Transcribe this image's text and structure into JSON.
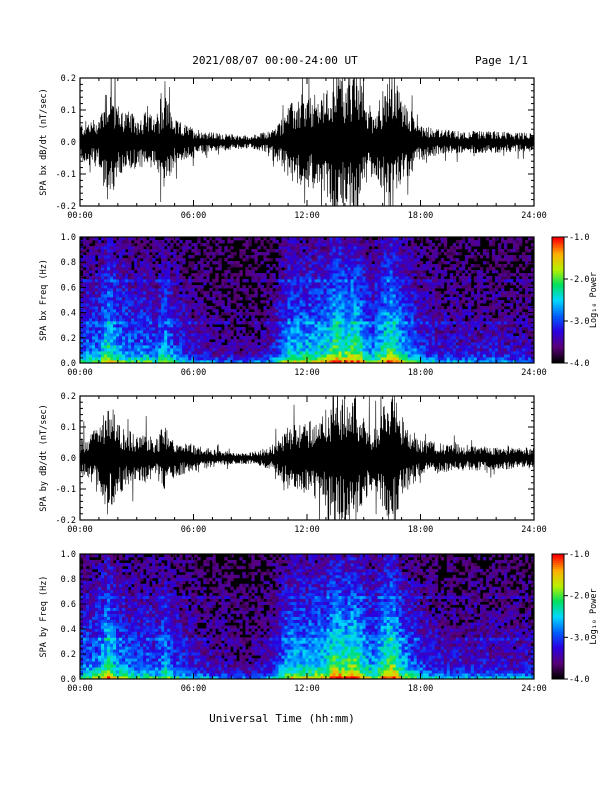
{
  "header": {
    "date_range": "2021/08/07  00:00-24:00 UT",
    "page": "Page 1/1"
  },
  "footer": {
    "xlabel": "Universal Time (hh:mm)"
  },
  "chart_data": [
    {
      "type": "line",
      "panel": "bx-timeseries",
      "ylabel": "SPA bx dB/dt (nT/sec)",
      "ylim": [
        -0.2,
        0.2
      ],
      "yticks": [
        -0.2,
        -0.1,
        0.0,
        0.1,
        0.2
      ],
      "ytick_labels": [
        "-0.2",
        "-0.1",
        "0.0",
        "0.1",
        "0.2"
      ],
      "xlim": [
        0,
        24
      ],
      "xticks": [
        0,
        6,
        12,
        18,
        24
      ],
      "xtick_labels": [
        "00:00",
        "06:00",
        "12:00",
        "18:00",
        "24:00"
      ],
      "color": "#000000",
      "envelope": {
        "hours": [
          0,
          1,
          1.5,
          2,
          3,
          3.5,
          4,
          4.5,
          5,
          6,
          7,
          8,
          9,
          10,
          10.5,
          11,
          12,
          13,
          13.5,
          14,
          14.5,
          15,
          15.5,
          16,
          16.5,
          17,
          17.5,
          18,
          19,
          20,
          21,
          22,
          23,
          24
        ],
        "amplitude": [
          0.06,
          0.08,
          0.2,
          0.12,
          0.08,
          0.1,
          0.07,
          0.16,
          0.07,
          0.045,
          0.03,
          0.025,
          0.02,
          0.035,
          0.06,
          0.12,
          0.14,
          0.16,
          0.25,
          0.2,
          0.25,
          0.16,
          0.1,
          0.16,
          0.25,
          0.14,
          0.1,
          0.06,
          0.04,
          0.035,
          0.035,
          0.035,
          0.03,
          0.03
        ]
      }
    },
    {
      "type": "heatmap",
      "panel": "bx-spectrogram",
      "ylabel": "SPA bx Freq (Hz)",
      "ylim": [
        0.0,
        1.0
      ],
      "yticks": [
        0.0,
        0.2,
        0.4,
        0.6,
        0.8,
        1.0
      ],
      "ytick_labels": [
        "0.0",
        "0.2",
        "0.4",
        "0.6",
        "0.8",
        "1.0"
      ],
      "xlim": [
        0,
        24
      ],
      "xticks": [
        0,
        6,
        12,
        18,
        24
      ],
      "xtick_labels": [
        "00:00",
        "06:00",
        "12:00",
        "18:00",
        "24:00"
      ],
      "colorbar": {
        "label": "Log₁₀ Power",
        "range": [
          -4.0,
          -1.0
        ],
        "ticks": [
          -1.0,
          -2.0,
          -3.0,
          -4.0
        ],
        "tick_labels": [
          "-1.0",
          "-2.0",
          "-3.0",
          "-4.0"
        ],
        "colors": [
          "#000000",
          "#5a007a",
          "#2a00e0",
          "#0060ff",
          "#00d8ff",
          "#00e060",
          "#b8f000",
          "#ffb000",
          "#ff0000"
        ]
      },
      "activity": {
        "hours": [
          0,
          1,
          1.5,
          2,
          3,
          3.5,
          4,
          4.5,
          5,
          6,
          7,
          8,
          9,
          10,
          10.5,
          11,
          12,
          13,
          13.5,
          14,
          14.5,
          15,
          15.5,
          16,
          16.5,
          17,
          17.5,
          18,
          19,
          20,
          21,
          22,
          23,
          24
        ],
        "level": [
          0.45,
          0.5,
          0.75,
          0.55,
          0.45,
          0.5,
          0.42,
          0.6,
          0.42,
          0.3,
          0.22,
          0.2,
          0.18,
          0.25,
          0.4,
          0.6,
          0.62,
          0.65,
          0.85,
          0.75,
          0.85,
          0.65,
          0.5,
          0.7,
          0.85,
          0.6,
          0.5,
          0.38,
          0.3,
          0.28,
          0.28,
          0.28,
          0.25,
          0.25
        ]
      }
    },
    {
      "type": "line",
      "panel": "by-timeseries",
      "ylabel": "SPA by dB/dt (nT/sec)",
      "ylim": [
        -0.2,
        0.2
      ],
      "yticks": [
        -0.2,
        -0.1,
        0.0,
        0.1,
        0.2
      ],
      "ytick_labels": [
        "-0.2",
        "-0.1",
        "0.0",
        "0.1",
        "0.2"
      ],
      "xlim": [
        0,
        24
      ],
      "xticks": [
        0,
        6,
        12,
        18,
        24
      ],
      "xtick_labels": [
        "00:00",
        "06:00",
        "12:00",
        "18:00",
        "24:00"
      ],
      "color": "#000000",
      "envelope": {
        "hours": [
          0,
          1,
          1.5,
          2,
          3,
          3.5,
          4,
          4.5,
          5,
          6,
          7,
          8,
          9,
          10,
          10.5,
          11,
          12,
          13,
          13.5,
          14,
          14.5,
          15,
          15.5,
          16,
          16.5,
          17,
          17.5,
          18,
          19,
          20,
          21,
          22,
          23,
          24
        ],
        "amplitude": [
          0.06,
          0.1,
          0.2,
          0.12,
          0.07,
          0.08,
          0.06,
          0.12,
          0.06,
          0.045,
          0.03,
          0.02,
          0.02,
          0.035,
          0.06,
          0.1,
          0.12,
          0.16,
          0.25,
          0.2,
          0.22,
          0.14,
          0.1,
          0.16,
          0.25,
          0.14,
          0.1,
          0.06,
          0.05,
          0.045,
          0.04,
          0.04,
          0.035,
          0.035
        ]
      }
    },
    {
      "type": "heatmap",
      "panel": "by-spectrogram",
      "ylabel": "SPA by Freq (Hz)",
      "ylim": [
        0.0,
        1.0
      ],
      "yticks": [
        0.0,
        0.2,
        0.4,
        0.6,
        0.8,
        1.0
      ],
      "ytick_labels": [
        "0.0",
        "0.2",
        "0.4",
        "0.6",
        "0.8",
        "1.0"
      ],
      "xlim": [
        0,
        24
      ],
      "xticks": [
        0,
        6,
        12,
        18,
        24
      ],
      "xtick_labels": [
        "00:00",
        "06:00",
        "12:00",
        "18:00",
        "24:00"
      ],
      "colorbar": {
        "label": "Log₁₀ Power",
        "range": [
          -4.0,
          -1.0
        ],
        "ticks": [
          -1.0,
          -2.0,
          -3.0,
          -4.0
        ],
        "tick_labels": [
          "-1.0",
          "-2.0",
          "-3.0",
          "-4.0"
        ],
        "colors": [
          "#000000",
          "#5a007a",
          "#2a00e0",
          "#0060ff",
          "#00d8ff",
          "#00e060",
          "#b8f000",
          "#ffb000",
          "#ff0000"
        ]
      },
      "activity": {
        "hours": [
          0,
          1,
          1.5,
          2,
          3,
          3.5,
          4,
          4.5,
          5,
          6,
          7,
          8,
          9,
          10,
          10.5,
          11,
          12,
          13,
          13.5,
          14,
          14.5,
          15,
          15.5,
          16,
          16.5,
          17,
          17.5,
          18,
          19,
          20,
          21,
          22,
          23,
          24
        ],
        "level": [
          0.45,
          0.55,
          0.78,
          0.55,
          0.45,
          0.48,
          0.42,
          0.58,
          0.42,
          0.32,
          0.25,
          0.22,
          0.2,
          0.28,
          0.42,
          0.62,
          0.64,
          0.68,
          0.88,
          0.78,
          0.88,
          0.68,
          0.55,
          0.75,
          0.9,
          0.62,
          0.5,
          0.4,
          0.32,
          0.3,
          0.3,
          0.3,
          0.28,
          0.28
        ]
      }
    }
  ]
}
